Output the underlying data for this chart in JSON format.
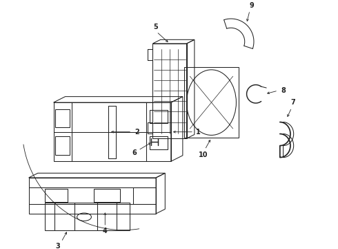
{
  "background_color": "#ffffff",
  "line_color": "#222222",
  "label_color": "#111111",
  "lw": 0.75
}
